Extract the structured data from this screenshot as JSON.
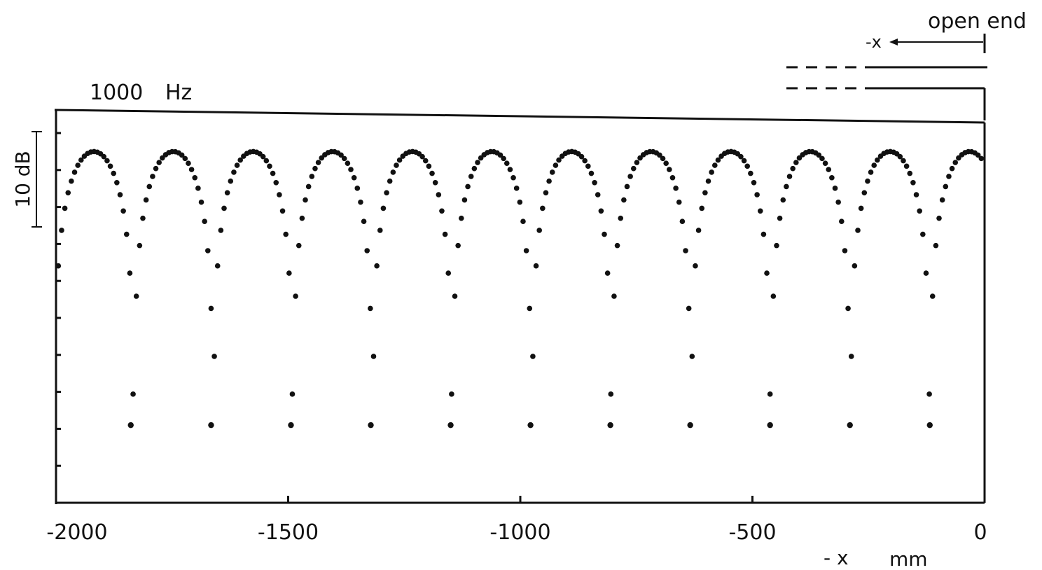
{
  "chart_data": {
    "type": "scatter",
    "annotation_frequency": "1000",
    "annotation_unit": "Hz",
    "scale_bar_label": "10 dB",
    "diagram_label": "open end",
    "diagram_x_label": "-x",
    "xlabel": "- x",
    "xunit": "mm",
    "x_ticks": [
      -2000,
      -1500,
      -1000,
      -500,
      0
    ],
    "x_tick_labels": [
      "-2000",
      "-1500",
      "-1000",
      "-500",
      "0"
    ],
    "xlim": [
      -2000,
      0
    ],
    "y_range_db": [
      0,
      50
    ],
    "y_ticks_db": [
      0,
      5,
      10,
      15,
      20,
      25,
      30,
      35,
      40,
      45,
      50
    ],
    "grid": false,
    "legend": "none",
    "series": [
      {
        "half_wavelength_mm": 171.5,
        "peak_positions_mm": [
          -1925,
          -1752,
          -1580,
          -1408,
          -1236,
          -1064,
          -892,
          -720,
          -548,
          -376,
          -204,
          -32
        ],
        "peak_level_db": 47.5,
        "minimum_positions_mm": [
          -1839,
          -1666,
          -1494,
          -1322,
          -1150,
          -978,
          -806,
          -634,
          -462,
          -290,
          -118
        ],
        "minimum_level_db": 10.5,
        "sample_spacing_mm": 7
      }
    ]
  }
}
